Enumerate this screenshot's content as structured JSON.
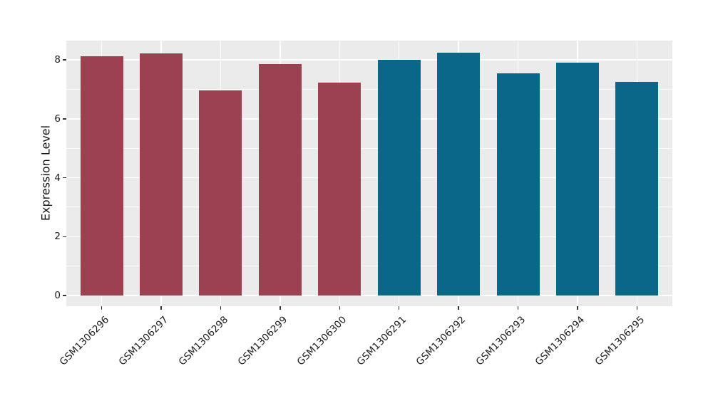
{
  "chart_data": {
    "type": "bar",
    "title": "",
    "xlabel": "",
    "ylabel": "Expression Level",
    "categories": [
      "GSM1306296",
      "GSM1306297",
      "GSM1306298",
      "GSM1306299",
      "GSM1306300",
      "GSM1306291",
      "GSM1306292",
      "GSM1306293",
      "GSM1306294",
      "GSM1306295"
    ],
    "values": [
      8.11,
      8.21,
      6.97,
      7.86,
      7.22,
      7.99,
      8.24,
      7.55,
      7.9,
      7.26
    ],
    "bar_colors": [
      "#9b4150",
      "#9b4150",
      "#9b4150",
      "#9b4150",
      "#9b4150",
      "#0b6787",
      "#0b6787",
      "#0b6787",
      "#0b6787",
      "#0b6787"
    ],
    "group_colors": {
      "left_group": "#9b4150",
      "right_group": "#0b6787"
    },
    "y_major_ticks": [
      0,
      2,
      4,
      6,
      8
    ],
    "y_minor_gridlines": [
      1,
      3,
      5,
      7
    ],
    "ylim": [
      0,
      8.65
    ],
    "grid": "on",
    "legend": "none",
    "plot_background": "#ebebeb",
    "gridline_color": "#ffffff",
    "tick_color": "#333333",
    "text_color": "#1c1c1c"
  }
}
